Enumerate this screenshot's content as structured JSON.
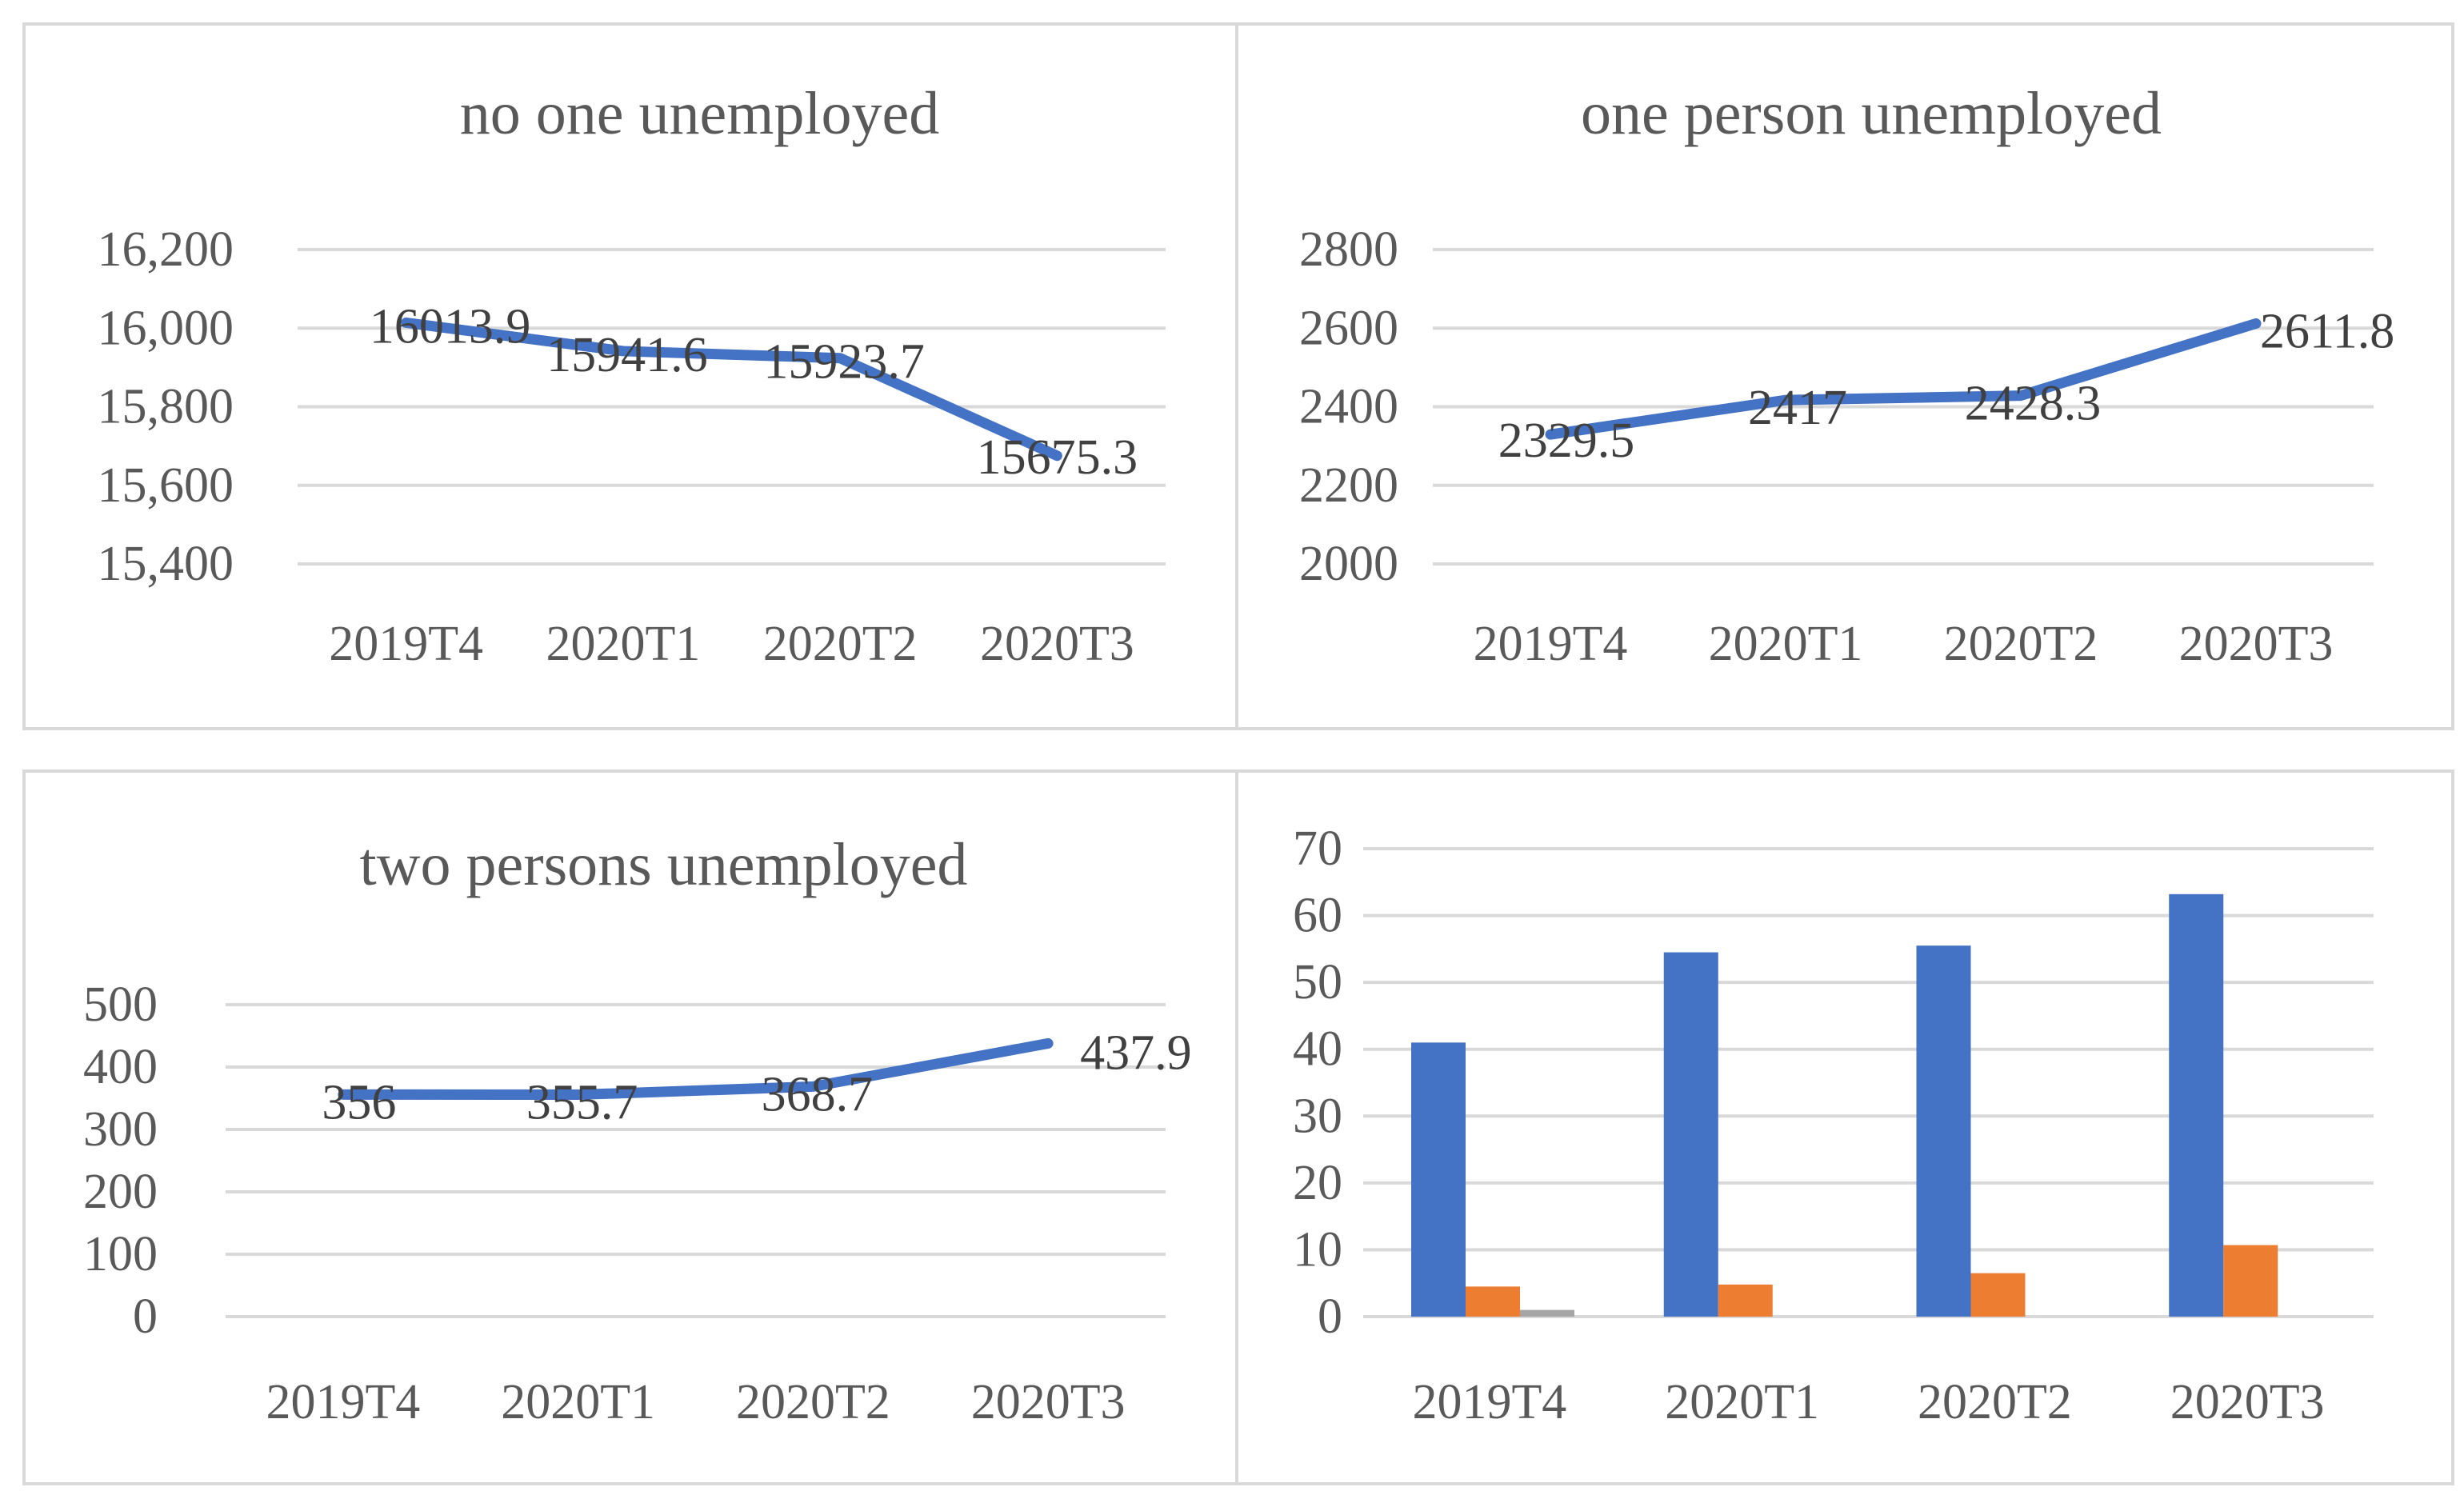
{
  "colors": {
    "series_line": "#4472c4",
    "bar_blue": "#4472c4",
    "bar_orange": "#ed7d31",
    "bar_gray": "#a5a5a5",
    "grid": "#d9d9d9",
    "text": "#595959"
  },
  "chart_data": [
    {
      "type": "line",
      "title": "no one unemployed",
      "categories": [
        "2019T4",
        "2020T1",
        "2020T2",
        "2020T3"
      ],
      "values": [
        16013.9,
        15941.6,
        15923.7,
        15675.3
      ],
      "data_labels": [
        "16013.9",
        "15941.6",
        "15923.7",
        "15675.3"
      ],
      "ylim": [
        15400,
        16200
      ],
      "yticks": [
        15400,
        15600,
        15800,
        16000,
        16200
      ],
      "ytick_labels": [
        "15,400",
        "15,600",
        "15,800",
        "16,000",
        "16,200"
      ],
      "grid": true,
      "legend": "none"
    },
    {
      "type": "line",
      "title": "one person unemployed",
      "categories": [
        "2019T4",
        "2020T1",
        "2020T2",
        "2020T3"
      ],
      "values": [
        2329.5,
        2417,
        2428.3,
        2611.8
      ],
      "data_labels": [
        "2329.5",
        "2417",
        "2428.3",
        "2611.8"
      ],
      "ylim": [
        2000,
        2800
      ],
      "yticks": [
        2000,
        2200,
        2400,
        2600,
        2800
      ],
      "ytick_labels": [
        "2000",
        "2200",
        "2400",
        "2600",
        "2800"
      ],
      "grid": true,
      "legend": "none"
    },
    {
      "type": "line",
      "title": "two persons unemployed",
      "categories": [
        "2019T4",
        "2020T1",
        "2020T2",
        "2020T3"
      ],
      "values": [
        356,
        355.7,
        368.7,
        437.9
      ],
      "data_labels": [
        "356",
        "355.7",
        "368.7",
        "437.9"
      ],
      "ylim": [
        0,
        500
      ],
      "yticks": [
        0,
        100,
        200,
        300,
        400,
        500
      ],
      "ytick_labels": [
        "0",
        "100",
        "200",
        "300",
        "400",
        "500"
      ],
      "grid": true,
      "legend": "none"
    },
    {
      "type": "bar",
      "title": "",
      "categories": [
        "2019T4",
        "2020T1",
        "2020T2",
        "2020T3"
      ],
      "series": [
        {
          "values": [
            41,
            54.5,
            55.5,
            63.2
          ]
        },
        {
          "values": [
            4.5,
            4.8,
            6.5,
            10.7
          ]
        },
        {
          "values": [
            1,
            0,
            0,
            0
          ]
        }
      ],
      "ylim": [
        0,
        70
      ],
      "yticks": [
        0,
        10,
        20,
        30,
        40,
        50,
        60,
        70
      ],
      "ytick_labels": [
        "0",
        "10",
        "20",
        "30",
        "40",
        "50",
        "60",
        "70"
      ],
      "grid": true,
      "legend": "none"
    }
  ]
}
